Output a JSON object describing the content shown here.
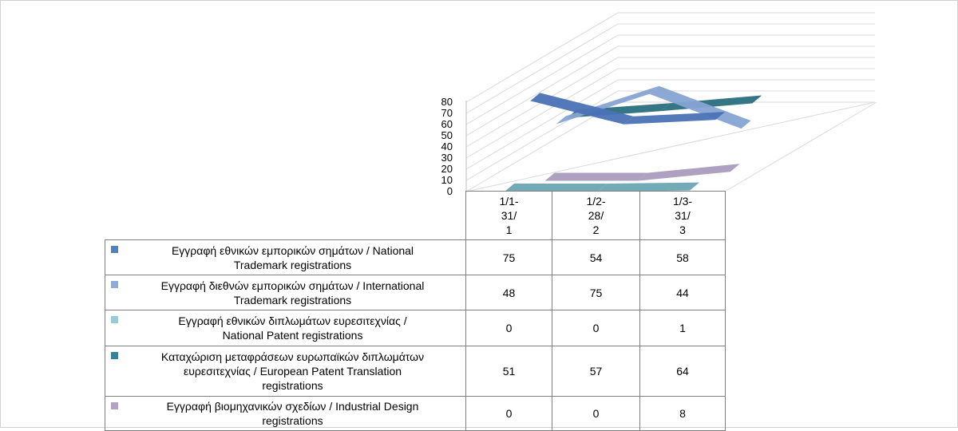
{
  "chart_data": {
    "type": "line",
    "style": "3d-line-with-data-table",
    "categories": [
      "1/1-31/1",
      "1/2-28/2",
      "1/3-31/3"
    ],
    "category_lines": [
      [
        "1/1-",
        "31/",
        "1"
      ],
      [
        "1/2-",
        "28/",
        "2"
      ],
      [
        "1/3-",
        "31/",
        "3"
      ]
    ],
    "series": [
      {
        "name": "Εγγραφή εθνικών εμπορικών σημάτων / National Trademark registrations",
        "values": [
          75,
          54,
          58
        ],
        "color": "#4f81bd",
        "line_color": "#4a72b5"
      },
      {
        "name": "Εγγραφή διεθνών εμπορικών σημάτων / International Trademark registrations",
        "values": [
          48,
          75,
          44
        ],
        "color": "#8eaadb",
        "line_color": "#86a3d3"
      },
      {
        "name": "Εγγραφή εθνικών διπλωμάτων ευρεσιτεχνίας / National Patent registrations",
        "values": [
          0,
          0,
          1
        ],
        "color": "#92cddc",
        "line_color": "#6aa7b3"
      },
      {
        "name": "Καταχώριση μεταφράσεων ευρωπαϊκών διπλωμάτων ευρεσιτεχνίας / European Patent Translation registrations",
        "values": [
          51,
          57,
          64
        ],
        "color": "#31859c",
        "line_color": "#2a6f80"
      },
      {
        "name": "Εγγραφή βιομηχανικών σχεδίων / Industrial Design registrations",
        "values": [
          0,
          0,
          8
        ],
        "color": "#b3a2c7",
        "line_color": "#a99bbd"
      }
    ],
    "legend_lines": [
      [
        "Εγγραφή εθνικών εμπορικών σημάτων / National",
        "Trademark registrations"
      ],
      [
        "Εγγραφή διεθνών εμπορικών σημάτων / International",
        "Trademark registrations"
      ],
      [
        "Εγγραφή εθνικών διπλωμάτων ευρεσιτεχνίας /",
        "National Patent registrations"
      ],
      [
        "Καταχώριση μεταφράσεων ευρωπαϊκών διπλωμάτων",
        "ευρεσιτεχνίας / European Patent Translation",
        "registrations"
      ],
      [
        "Εγγραφή βιομηχανικών σχεδίων / Industrial Design",
        "registrations"
      ]
    ],
    "y_ticks": [
      0,
      10,
      20,
      30,
      40,
      50,
      60,
      70,
      80
    ],
    "ylim": [
      0,
      80
    ],
    "grid": true,
    "legend": "data-table-left"
  }
}
